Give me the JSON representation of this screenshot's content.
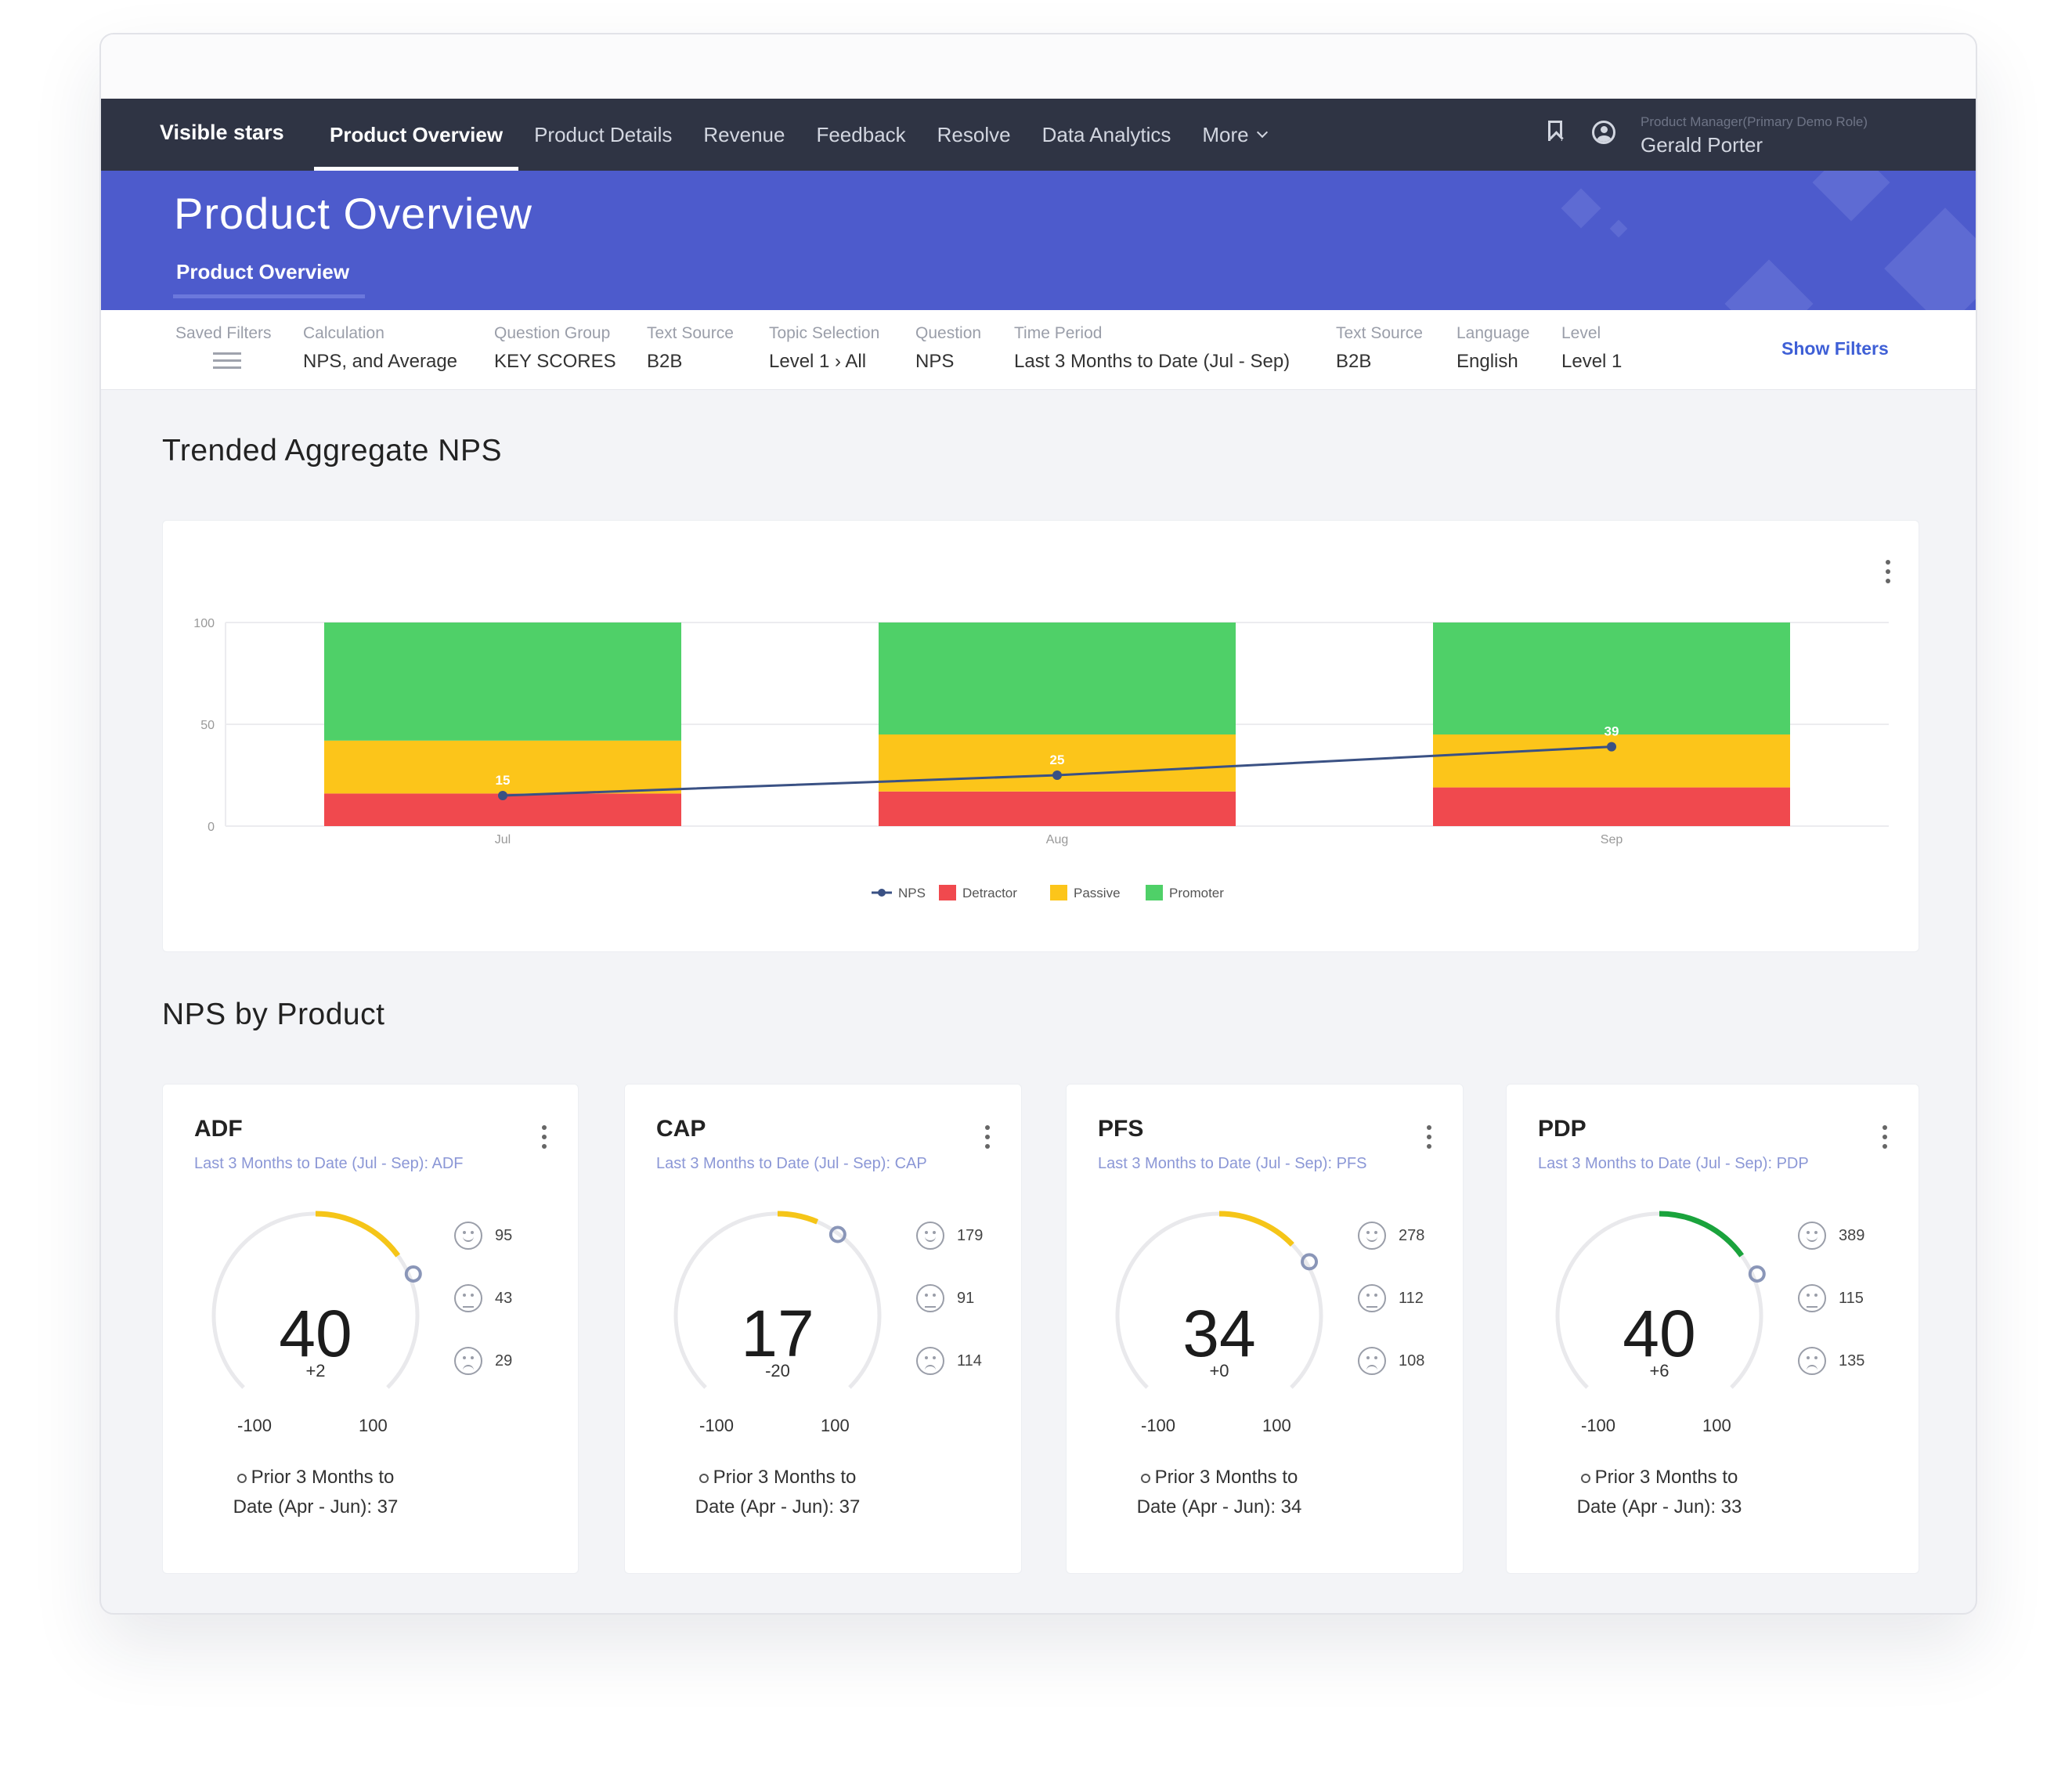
{
  "nav": {
    "brand": "Visible stars",
    "tabs": [
      "Product Overview",
      "Product Details",
      "Revenue",
      "Feedback",
      "Resolve",
      "Data Analytics",
      "More"
    ],
    "active_tab": "Product Overview",
    "user_role": "Product Manager(Primary Demo Role)",
    "user_name": "Gerald Porter"
  },
  "banner": {
    "title": "Product Overview",
    "subtitle": "Product Overview"
  },
  "filters": {
    "saved_label": "Saved Filters",
    "items": [
      {
        "label": "Calculation",
        "value": "NPS, and Average"
      },
      {
        "label": "Question Group",
        "value": "KEY SCORES"
      },
      {
        "label": "Text Source",
        "value": "B2B"
      },
      {
        "label": "Topic Selection",
        "value": "Level 1 › All"
      },
      {
        "label": "Question",
        "value": "NPS"
      },
      {
        "label": "Time Period",
        "value": "Last 3 Months to Date (Jul - Sep)"
      },
      {
        "label": "Text Source",
        "value": "B2B"
      },
      {
        "label": "Language",
        "value": "English"
      },
      {
        "label": "Level",
        "value": "Level 1"
      }
    ],
    "show_filters": "Show Filters"
  },
  "trend": {
    "title": "Trended Aggregate NPS"
  },
  "chart_data": {
    "type": "bar",
    "stacked": true,
    "categories": [
      "Jul",
      "Aug",
      "Sep"
    ],
    "ylim": [
      0,
      100
    ],
    "yticks": [
      0,
      50,
      100
    ],
    "series": [
      {
        "name": "Detractor",
        "values": [
          16,
          17,
          19
        ],
        "color": "#f0494e"
      },
      {
        "name": "Passive",
        "values": [
          26,
          28,
          26
        ],
        "color": "#fcc51a"
      },
      {
        "name": "Promoter",
        "values": [
          58,
          55,
          55
        ],
        "color": "#4fd068"
      }
    ],
    "line": {
      "name": "NPS",
      "values": [
        15,
        25,
        39
      ],
      "color": "#3a5184"
    },
    "legend": [
      "NPS",
      "Detractor",
      "Passive",
      "Promoter"
    ],
    "legend_position": "bottom",
    "grid": true
  },
  "products": {
    "title": "NPS by Product",
    "cards": [
      {
        "name": "ADF",
        "subtitle": "Last 3 Months to Date (Jul - Sep): ADF",
        "value": "40",
        "nps": 40,
        "delta": "+2",
        "min": "-100",
        "max": "100",
        "promoters": "95",
        "passives": "43",
        "detractors": "29",
        "prior_line1": "Prior 3 Months to",
        "prior_line2": "Date (Apr - Jun): 37",
        "arc_color": "#f5c518"
      },
      {
        "name": "CAP",
        "subtitle": "Last 3 Months to Date (Jul - Sep): CAP",
        "value": "17",
        "nps": 17,
        "delta": "-20",
        "min": "-100",
        "max": "100",
        "promoters": "179",
        "passives": "91",
        "detractors": "114",
        "prior_line1": "Prior 3 Months to",
        "prior_line2": "Date (Apr - Jun): 37",
        "arc_color": "#f5c518"
      },
      {
        "name": "PFS",
        "subtitle": "Last 3 Months to Date (Jul - Sep): PFS",
        "value": "34",
        "nps": 34,
        "delta": "+0",
        "min": "-100",
        "max": "100",
        "promoters": "278",
        "passives": "112",
        "detractors": "108",
        "prior_line1": "Prior 3 Months to",
        "prior_line2": "Date (Apr - Jun): 34",
        "arc_color": "#f5c518"
      },
      {
        "name": "PDP",
        "subtitle": "Last 3 Months to Date (Jul - Sep): PDP",
        "value": "40",
        "nps": 40,
        "delta": "+6",
        "min": "-100",
        "max": "100",
        "promoters": "389",
        "passives": "115",
        "detractors": "135",
        "prior_line1": "Prior 3 Months to",
        "prior_line2": "Date (Apr - Jun): 33",
        "arc_color": "#1aa33c"
      }
    ]
  }
}
